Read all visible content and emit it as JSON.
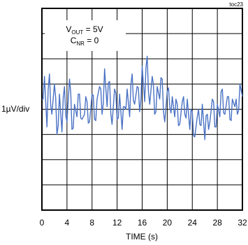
{
  "chart_data": {
    "type": "line",
    "tag": "toc23",
    "annotation": {
      "line1": {
        "main": "V",
        "sub": "OUT",
        "rest": " = 5V"
      },
      "line2": {
        "main": "C",
        "sub": "NR",
        "rest": " = 0"
      }
    },
    "ylabel": "1µV/div",
    "xlabel": "TIME (s)",
    "xlim": [
      0,
      32
    ],
    "x_ticks": [
      "0",
      "4",
      "8",
      "12",
      "16",
      "20",
      "24",
      "28",
      "32"
    ],
    "grid": true,
    "y_divisions": 8,
    "ylim": [
      -4,
      4
    ],
    "series": [
      {
        "color": "#4a72c4",
        "x": [
          0.0,
          0.4,
          0.8,
          1.2,
          1.6,
          2.0,
          2.4,
          2.8,
          3.2,
          3.6,
          4.0,
          4.4,
          4.8,
          5.2,
          5.6,
          6.0,
          6.4,
          6.8,
          7.2,
          7.6,
          8.0,
          8.4,
          8.8,
          9.2,
          9.6,
          10.0,
          10.4,
          10.8,
          11.2,
          11.6,
          12.0,
          12.4,
          12.8,
          13.2,
          13.6,
          14.0,
          14.4,
          14.8,
          15.2,
          15.6,
          16.0,
          16.4,
          16.8,
          17.2,
          17.6,
          18.0,
          18.4,
          18.8,
          19.2,
          19.6,
          20.0,
          20.4,
          20.8,
          21.2,
          21.6,
          22.0,
          22.4,
          22.8,
          23.2,
          23.6,
          24.0,
          24.4,
          24.8,
          25.2,
          25.6,
          26.0,
          26.4,
          26.8,
          27.2,
          27.6,
          28.0,
          28.4,
          28.8,
          29.2,
          29.6,
          30.0,
          30.4,
          30.8,
          31.2,
          31.6,
          32.0
        ],
        "y": [
          0.4,
          1.3,
          -0.7,
          1.4,
          -0.2,
          1.0,
          -1.0,
          0.6,
          -0.9,
          0.9,
          -0.5,
          1.2,
          -0.8,
          0.2,
          -0.3,
          0.6,
          -0.4,
          -0.2,
          0.3,
          -0.5,
          0.6,
          -0.4,
          0.4,
          0.9,
          -0.2,
          1.6,
          0.1,
          1.1,
          -0.6,
          0.8,
          -0.4,
          0.6,
          -0.8,
          0.1,
          0.8,
          -0.3,
          1.4,
          0.2,
          0.9,
          -0.1,
          1.7,
          0.3,
          2.1,
          0.2,
          1.3,
          -0.2,
          0.9,
          0.4,
          1.2,
          -0.5,
          0.7,
          0.1,
          0.5,
          -0.3,
          0.2,
          -0.6,
          0.3,
          -0.2,
          0.4,
          -0.8,
          -0.1,
          -1.1,
          -0.3,
          -0.6,
          0.2,
          -1.2,
          -0.2,
          -0.5,
          0.4,
          -0.7,
          0.2,
          -0.3,
          0.8,
          -0.2,
          0.5,
          -0.4,
          0.4,
          0.1,
          -0.2,
          1.0,
          0.5
        ]
      }
    ]
  }
}
